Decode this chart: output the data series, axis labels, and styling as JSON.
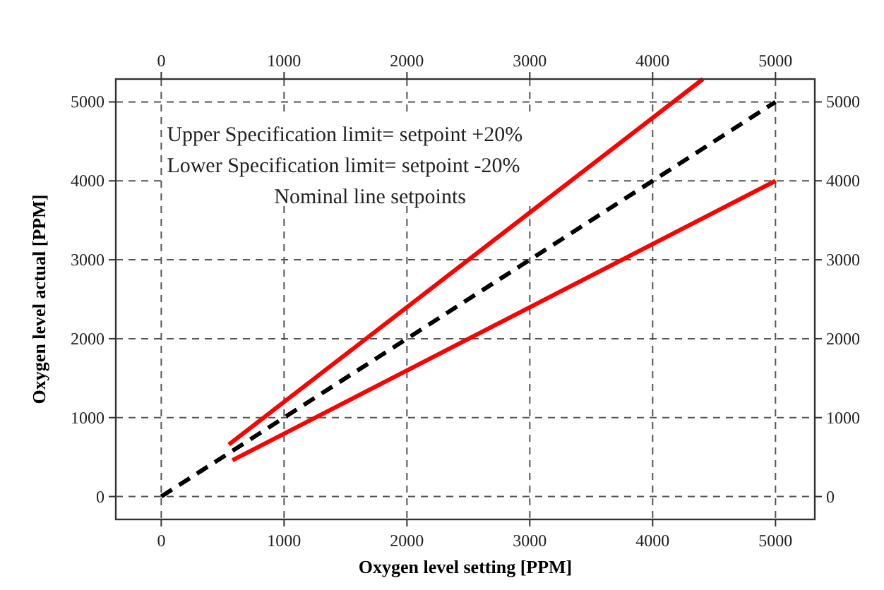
{
  "chart_data": {
    "type": "line",
    "xlabel": "Oxygen level setting [PPM]",
    "ylabel": "Oxygen level actual [PPM]",
    "xlim": [
      -370,
      5320
    ],
    "xticks": [
      0,
      1000,
      2000,
      3000,
      4000,
      5000
    ],
    "x2lim": [
      -370,
      5320
    ],
    "x2ticks": [
      0,
      1000,
      2000,
      3000,
      4000,
      5000
    ],
    "ylim": [
      -290,
      5290
    ],
    "yticks": [
      0,
      1000,
      2000,
      3000,
      4000,
      5000
    ],
    "y2lim": [
      -290,
      5290
    ],
    "y2ticks": [
      0,
      1000,
      2000,
      3000,
      4000,
      5000
    ],
    "grid": true,
    "series": [
      {
        "color": "#ff0000",
        "x": [
          550,
          4410
        ],
        "values": [
          660,
          5290
        ],
        "line_style": "solid"
      },
      {
        "color": "#000000",
        "x": [
          0,
          5000
        ],
        "values": [
          0,
          5000
        ],
        "line_style": "dashed"
      },
      {
        "color": "#ff0000",
        "x": [
          580,
          5000
        ],
        "values": [
          460,
          4000
        ],
        "line_style": "solid"
      }
    ],
    "annotations": [
      "Upper Specification limit= setpoint +20%",
      "Lower Specification limit= setpoint -20%",
      "Nominal line setpoints"
    ]
  }
}
